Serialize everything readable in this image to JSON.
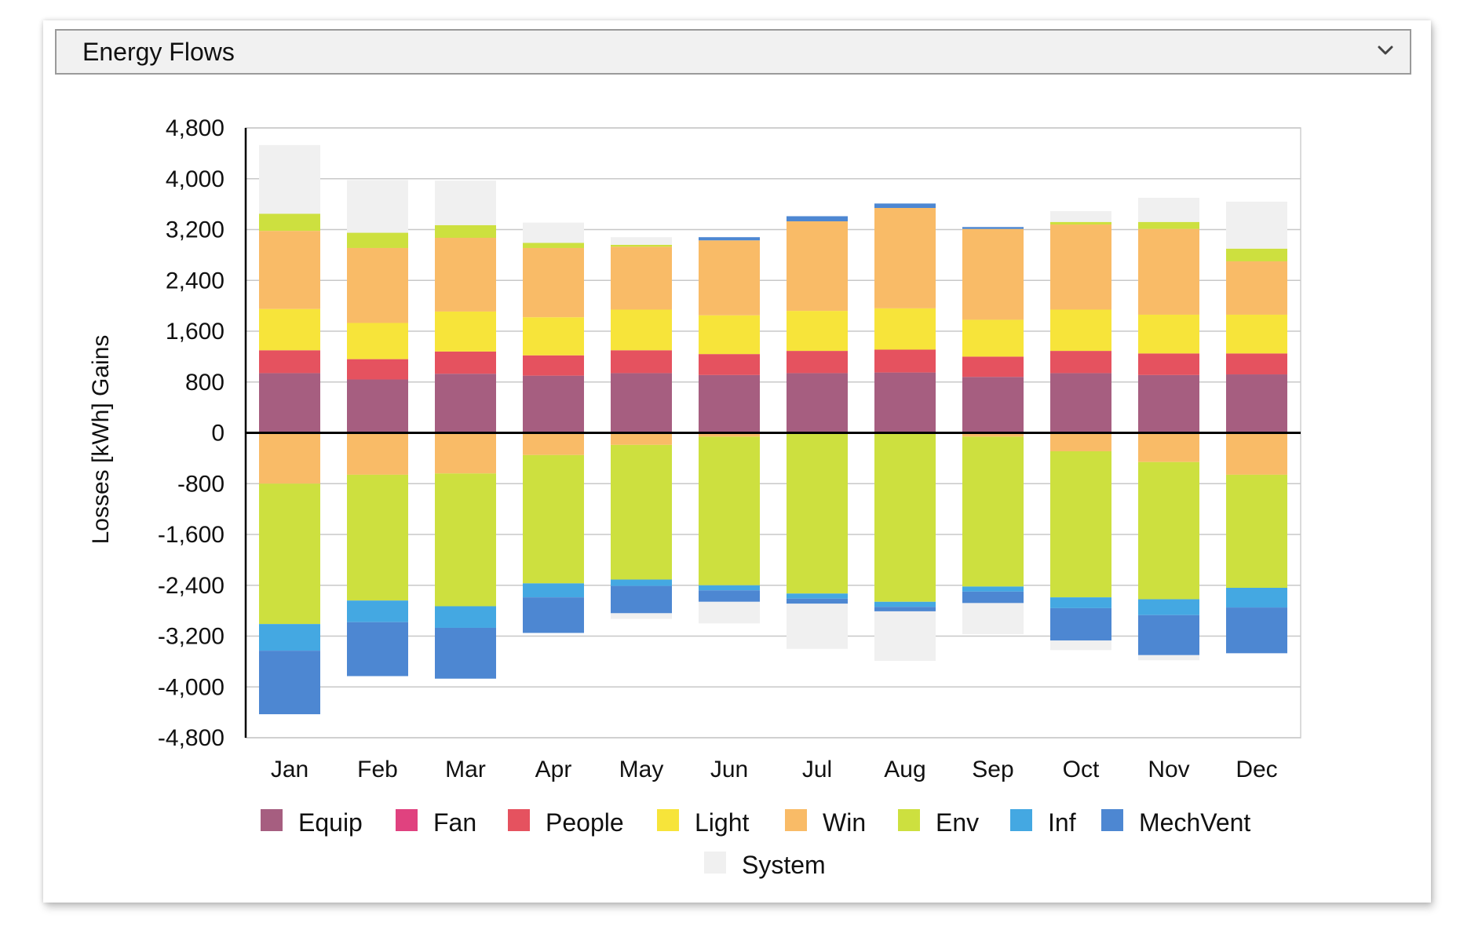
{
  "dropdown": {
    "label": "Energy Flows",
    "icon": "chevron-down-icon"
  },
  "chart_data": {
    "type": "bar",
    "stacked": true,
    "diverging": true,
    "categories": [
      "Jan",
      "Feb",
      "Mar",
      "Apr",
      "May",
      "Jun",
      "Jul",
      "Aug",
      "Sep",
      "Oct",
      "Nov",
      "Dec"
    ],
    "ylabel_negative": "Losses",
    "ylabel_unit": "[kWh]",
    "ylabel_positive": "Gains",
    "ylim": [
      -4800,
      4800
    ],
    "yticks": [
      4800,
      4000,
      3200,
      2400,
      1600,
      800,
      0,
      -800,
      -1600,
      -2400,
      -3200,
      -4000,
      -4800
    ],
    "ytick_labels": [
      "4,800",
      "4,000",
      "3,200",
      "2,400",
      "1,600",
      "800",
      "0",
      "-800",
      "-1,600",
      "-2,400",
      "-3,200",
      "-4,000",
      "-4,800"
    ],
    "grid": true,
    "legend_position": "bottom",
    "series": [
      {
        "name": "Equip",
        "color": "#a65e80",
        "gains": [
          940,
          840,
          930,
          900,
          940,
          910,
          940,
          950,
          880,
          940,
          910,
          920
        ],
        "losses": [
          0,
          0,
          0,
          0,
          0,
          0,
          0,
          0,
          0,
          0,
          0,
          0
        ]
      },
      {
        "name": "Fan",
        "color": "#e0427f",
        "gains": [
          0,
          0,
          0,
          0,
          0,
          0,
          0,
          0,
          0,
          0,
          0,
          0
        ],
        "losses": [
          0,
          0,
          0,
          0,
          0,
          0,
          0,
          0,
          0,
          0,
          0,
          0
        ]
      },
      {
        "name": "People",
        "color": "#e5525f",
        "gains": [
          360,
          320,
          350,
          320,
          360,
          330,
          350,
          360,
          320,
          350,
          340,
          330
        ],
        "losses": [
          0,
          0,
          0,
          0,
          0,
          0,
          0,
          0,
          0,
          0,
          0,
          0
        ]
      },
      {
        "name": "Light",
        "color": "#f7e43a",
        "gains": [
          650,
          570,
          630,
          600,
          640,
          610,
          630,
          650,
          580,
          650,
          610,
          610
        ],
        "losses": [
          0,
          0,
          0,
          0,
          0,
          0,
          0,
          0,
          0,
          0,
          0,
          0
        ]
      },
      {
        "name": "Win",
        "color": "#f9bb67",
        "gains": [
          1230,
          1180,
          1160,
          1090,
          990,
          1180,
          1410,
          1580,
          1430,
          1340,
          1350,
          840
        ],
        "losses": [
          800,
          660,
          640,
          350,
          190,
          60,
          0,
          0,
          60,
          290,
          460,
          660
        ]
      },
      {
        "name": "Env",
        "color": "#cde03f",
        "gains": [
          270,
          240,
          200,
          80,
          30,
          0,
          0,
          0,
          0,
          40,
          110,
          200
        ],
        "losses": [
          2210,
          1980,
          2090,
          2020,
          2120,
          2340,
          2530,
          2660,
          2360,
          2300,
          2160,
          1780
        ]
      },
      {
        "name": "Inf",
        "color": "#44a8e2",
        "gains": [
          0,
          0,
          0,
          0,
          0,
          0,
          0,
          0,
          0,
          0,
          0,
          0
        ],
        "losses": [
          420,
          340,
          340,
          220,
          100,
          80,
          80,
          80,
          80,
          170,
          250,
          310
        ]
      },
      {
        "name": "MechVent",
        "color": "#4d87d2",
        "gains": [
          0,
          0,
          0,
          0,
          0,
          50,
          80,
          70,
          30,
          0,
          0,
          0
        ],
        "losses": [
          1000,
          850,
          800,
          560,
          430,
          180,
          80,
          70,
          180,
          510,
          630,
          720
        ]
      },
      {
        "name": "System",
        "color": "#f0f0f0",
        "gains": [
          1080,
          830,
          700,
          320,
          120,
          0,
          0,
          0,
          0,
          170,
          380,
          740
        ],
        "losses": [
          0,
          0,
          0,
          0,
          90,
          340,
          710,
          780,
          490,
          150,
          80,
          0
        ]
      }
    ]
  }
}
